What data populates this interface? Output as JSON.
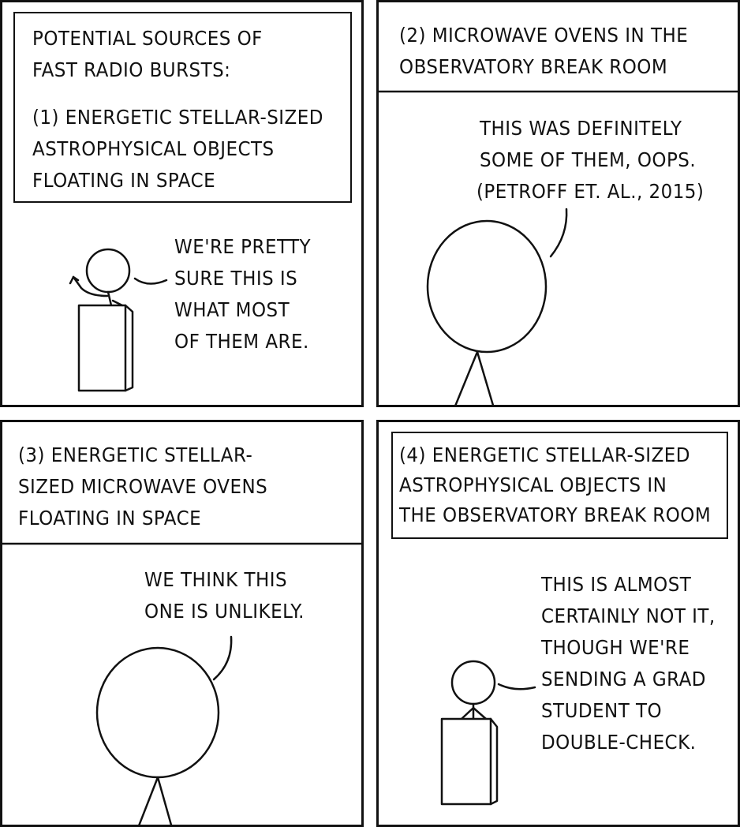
{
  "panels": [
    {
      "caption": [
        "POTENTIAL SOURCES OF",
        "FAST RADIO BURSTS:",
        "",
        "(1) ENERGETIC STELLAR-SIZED",
        "ASTROPHYSICAL OBJECTS",
        "FLOATING IN SPACE"
      ],
      "speech": [
        "WE'RE PRETTY",
        "SURE THIS IS",
        "WHAT MOST",
        "OF THEM ARE."
      ]
    },
    {
      "caption": [
        "(2) MICROWAVE OVENS IN THE",
        "OBSERVATORY BREAK ROOM"
      ],
      "speech": [
        "THIS WAS DEFINITELY",
        "SOME OF THEM, OOPS.",
        "(PETROFF ET. AL., 2015)"
      ]
    },
    {
      "caption": [
        "(3) ENERGETIC STELLAR-",
        "SIZED MICROWAVE OVENS",
        "FLOATING IN SPACE"
      ],
      "speech": [
        "WE THINK THIS",
        "ONE IS UNLIKELY."
      ]
    },
    {
      "caption": [
        "(4) ENERGETIC STELLAR-SIZED",
        "ASTROPHYSICAL OBJECTS IN",
        "THE OBSERVATORY BREAK ROOM"
      ],
      "speech": [
        "THIS IS ALMOST",
        "CERTAINLY NOT IT,",
        "THOUGH WE'RE",
        "SENDING A GRAD",
        "STUDENT TO",
        "DOUBLE-CHECK."
      ]
    }
  ]
}
